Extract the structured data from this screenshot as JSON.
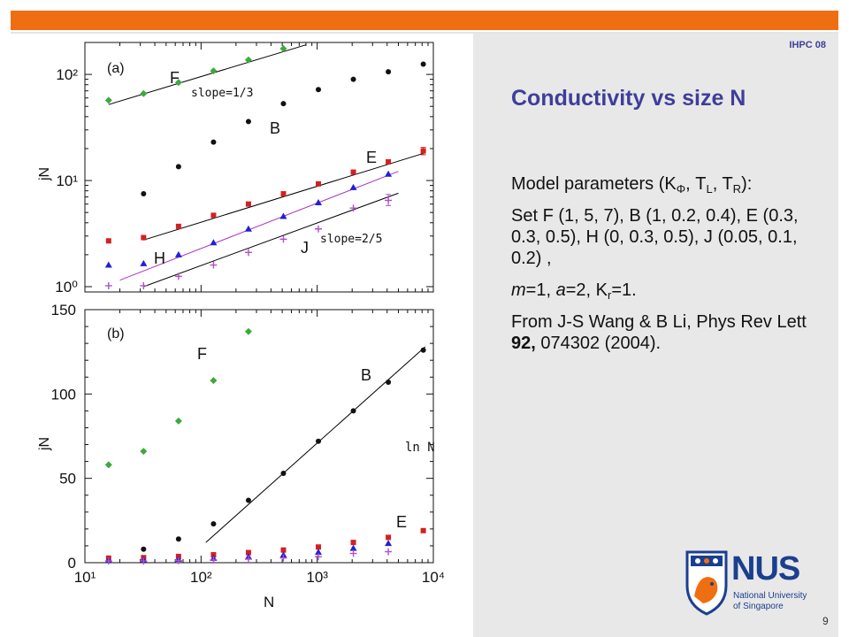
{
  "header": {
    "venue": "IHPC 08"
  },
  "slide": {
    "title": "Conductivity vs size N",
    "page_number": "9"
  },
  "body": {
    "p1_text": "Model parameters (K",
    "p1_sub1": "Φ",
    "p1_mid1": ", T",
    "p1_sub2": "L",
    "p1_mid2": ", T",
    "p1_sub3": "R",
    "p1_end": "):",
    "p2": "Set F (1, 5, 7), B (1, 0.2, 0.4), E (0.3, 0.3, 0.5), H (0, 0.3, 0.5), J (0.05, 0.1, 0.2) ,",
    "p3_m": "m",
    "p3_a": "=1, ",
    "p3_b": "a",
    "p3_c": "=2, K",
    "p3_sub": "r",
    "p3_d": "=1.",
    "p4_pre": "From J-S Wang & B Li, Phys Rev Lett ",
    "p4_vol": "92,",
    "p4_post": " 074302 (2004)."
  },
  "logo": {
    "name": "NUS",
    "line1": "National University",
    "line2": "of Singapore",
    "colors": {
      "blue": "#1b3f8f",
      "orange": "#f06e12"
    }
  },
  "colors": {
    "accent_bar": "#f06e12",
    "title": "#3e3e9a",
    "panel": "#e8e8e8",
    "F": "#3caa3c",
    "B": "#111111",
    "E": "#d42020",
    "H": "#2020d8",
    "J": "#b050c8",
    "fit_line": "#000000",
    "fit_line_H": "#b030c0"
  },
  "chart_data": [
    {
      "type": "scatter",
      "panel_label": "(a)",
      "xscale": "log",
      "yscale": "log",
      "xlim": [
        10,
        10000
      ],
      "ylim": [
        1,
        200
      ],
      "ylabel": "jN",
      "ytick_labels": [
        "10⁰",
        "10¹",
        "10²"
      ],
      "ytick_values": [
        1,
        10,
        100
      ],
      "annotations": [
        "slope=1/3",
        "slope=2/5"
      ],
      "series": [
        {
          "name": "F",
          "x": [
            16,
            32,
            64,
            128,
            256,
            512
          ],
          "y": [
            57,
            66,
            84,
            108,
            137,
            175
          ]
        },
        {
          "name": "B",
          "x": [
            32,
            64,
            128,
            256,
            512,
            1024,
            2048,
            4096,
            8192
          ],
          "y": [
            7.5,
            13.5,
            23,
            36,
            53,
            72,
            90,
            106,
            125
          ]
        },
        {
          "name": "E",
          "x": [
            16,
            32,
            64,
            128,
            256,
            512,
            1024,
            2048,
            4096,
            8192
          ],
          "y": [
            2.7,
            2.9,
            3.7,
            4.7,
            6.0,
            7.5,
            9.3,
            12,
            15,
            19
          ]
        },
        {
          "name": "H",
          "x": [
            16,
            32,
            64,
            128,
            256,
            512,
            1024,
            2048,
            4096
          ],
          "y": [
            1.6,
            1.65,
            2.0,
            2.6,
            3.5,
            4.6,
            6.2,
            8.6,
            11.5
          ]
        },
        {
          "name": "J",
          "x": [
            16,
            32,
            64,
            128,
            256,
            512,
            1024,
            2048,
            4096
          ],
          "y": [
            1.02,
            1.02,
            1.25,
            1.6,
            2.1,
            2.8,
            3.5,
            5.5,
            6.5
          ]
        }
      ],
      "fit_lines": [
        {
          "label": "slope=1/3",
          "x": [
            16,
            800
          ],
          "y": [
            52,
            190
          ]
        },
        {
          "label": "E",
          "x": [
            32,
            8192
          ],
          "y": [
            2.75,
            18
          ]
        },
        {
          "label": "H",
          "x": [
            20,
            5000
          ],
          "y": [
            1.15,
            12.2
          ]
        },
        {
          "label": "slope=2/5",
          "x": [
            32,
            5000
          ],
          "y": [
            1.0,
            7.6
          ]
        }
      ]
    },
    {
      "type": "scatter",
      "panel_label": "(b)",
      "xscale": "log",
      "yscale": "linear",
      "xlim": [
        10,
        10000
      ],
      "ylim": [
        0,
        150
      ],
      "xlabel": "N",
      "ylabel": "jN",
      "ytick_labels": [
        "0",
        "50",
        "100",
        "150"
      ],
      "ytick_values": [
        0,
        50,
        100,
        150
      ],
      "xtick_labels": [
        "10¹",
        "10²",
        "10³",
        "10⁴"
      ],
      "xtick_values": [
        10,
        100,
        1000,
        10000
      ],
      "annotations": [
        "ln N"
      ],
      "series": [
        {
          "name": "F",
          "x": [
            16,
            32,
            64,
            128,
            256
          ],
          "y": [
            58,
            66,
            84,
            108,
            137
          ]
        },
        {
          "name": "B",
          "x": [
            32,
            64,
            128,
            256,
            512,
            1024,
            2048,
            4096,
            8192
          ],
          "y": [
            8,
            14,
            23,
            37,
            53,
            72,
            90,
            107,
            126
          ]
        },
        {
          "name": "E",
          "x": [
            16,
            32,
            64,
            128,
            256,
            512,
            1024,
            2048,
            4096,
            8192
          ],
          "y": [
            2.7,
            3,
            3.7,
            4.7,
            6,
            7.5,
            9.3,
            12,
            15,
            19
          ]
        },
        {
          "name": "H",
          "x": [
            16,
            32,
            64,
            128,
            256,
            512,
            1024,
            2048,
            4096
          ],
          "y": [
            1.6,
            1.7,
            2,
            2.6,
            3.5,
            4.6,
            6.2,
            8.6,
            11.5
          ]
        },
        {
          "name": "J",
          "x": [
            16,
            32,
            64,
            128,
            256,
            512,
            1024,
            2048,
            4096
          ],
          "y": [
            1,
            1,
            1.2,
            1.6,
            2.1,
            2.8,
            3.5,
            5.5,
            6.5
          ]
        }
      ],
      "fit_lines": [
        {
          "label": "ln N",
          "x": [
            110,
            8500
          ],
          "y": [
            12,
            128
          ]
        }
      ],
      "series_labels_shown": [
        "F",
        "B",
        "E"
      ]
    }
  ]
}
